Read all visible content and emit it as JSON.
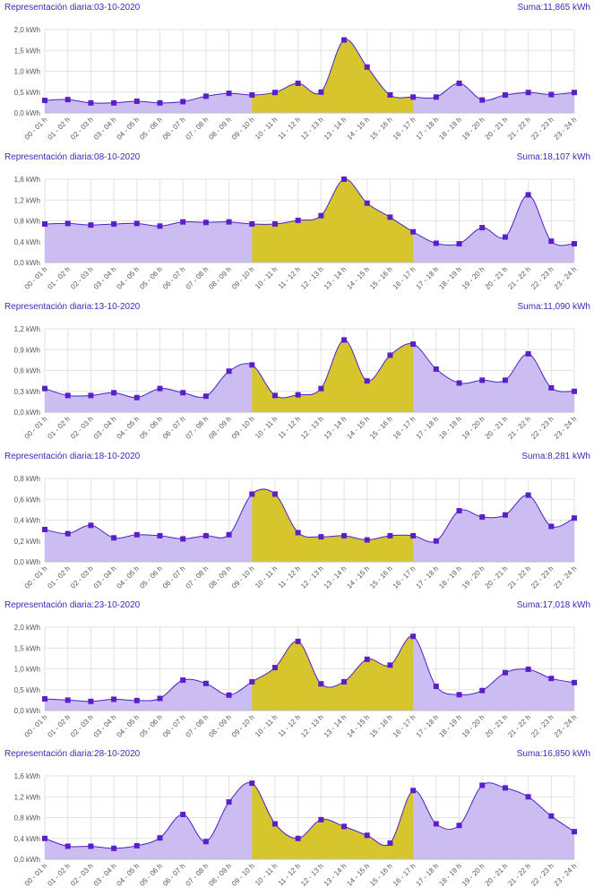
{
  "colors": {
    "title": "#3b2bb8",
    "line": "#4b22c8",
    "marker": "#5b1fc9",
    "fill": "#cbbcf2",
    "highlight": "#d7c52e",
    "grid": "#e2e2e2"
  },
  "chart_data": [
    {
      "type": "area",
      "title": "Representación diaria:03-10-2020",
      "total": "Suma:11,865 kWh",
      "categories": [
        "00 - 01 h",
        "01 - 02 h",
        "02 - 03 h",
        "03 - 04 h",
        "04 - 05 h",
        "05 - 06 h",
        "06 - 07 h",
        "07 - 08 h",
        "08 - 09 h",
        "09 - 10 h",
        "10 - 11 h",
        "11 - 12 h",
        "12 - 13 h",
        "13 - 14 h",
        "14 - 15 h",
        "15 - 16 h",
        "16 - 17 h",
        "17 - 18 h",
        "18 - 19 h",
        "19 - 20 h",
        "20 - 21 h",
        "21 - 22 h",
        "22 - 23 h",
        "23 - 24 h"
      ],
      "values": [
        0.3,
        0.32,
        0.24,
        0.24,
        0.28,
        0.24,
        0.27,
        0.4,
        0.47,
        0.43,
        0.49,
        0.71,
        0.5,
        1.75,
        1.1,
        0.43,
        0.38,
        0.38,
        0.71,
        0.31,
        0.43,
        0.49,
        0.44,
        0.49
      ],
      "yticks": [
        "0,0 kWh",
        "0,5 kWh",
        "1,0 kWh",
        "1,5 kWh",
        "2,0 kWh"
      ],
      "ylim": [
        0,
        2.0
      ],
      "highlight_range": [
        9,
        16
      ],
      "grid": true
    },
    {
      "type": "area",
      "title": "Representación diaria:08-10-2020",
      "total": "Suma:18,107 kWh",
      "categories": [
        "00 - 01 h",
        "01 - 02 h",
        "02 - 03 h",
        "03 - 04 h",
        "04 - 05 h",
        "05 - 06 h",
        "06 - 07 h",
        "07 - 08 h",
        "08 - 09 h",
        "09 - 10 h",
        "10 - 11 h",
        "11 - 12 h",
        "12 - 13 h",
        "13 - 14 h",
        "14 - 15 h",
        "15 - 16 h",
        "16 - 17 h",
        "17 - 18 h",
        "18 - 19 h",
        "19 - 20 h",
        "20 - 21 h",
        "21 - 22 h",
        "22 - 23 h",
        "23 - 24 h"
      ],
      "values": [
        0.74,
        0.75,
        0.72,
        0.74,
        0.75,
        0.7,
        0.78,
        0.77,
        0.78,
        0.74,
        0.74,
        0.81,
        0.9,
        1.6,
        1.14,
        0.87,
        0.59,
        0.37,
        0.36,
        0.67,
        0.49,
        1.3,
        0.41,
        0.36
      ],
      "yticks": [
        "0,0 kWh",
        "0,4 kWh",
        "0,8 kWh",
        "1,2 kWh",
        "1,6 kWh"
      ],
      "ylim": [
        0,
        1.6
      ],
      "highlight_range": [
        9,
        16
      ],
      "grid": true
    },
    {
      "type": "area",
      "title": "Representación diaria:13-10-2020",
      "total": "Suma:11,090 kWh",
      "categories": [
        "00 - 01 h",
        "01 - 02 h",
        "02 - 03 h",
        "03 - 04 h",
        "04 - 05 h",
        "05 - 06 h",
        "06 - 07 h",
        "07 - 08 h",
        "08 - 09 h",
        "09 - 10 h",
        "10 - 11 h",
        "11 - 12 h",
        "12 - 13 h",
        "13 - 14 h",
        "14 - 15 h",
        "15 - 16 h",
        "16 - 17 h",
        "17 - 18 h",
        "18 - 19 h",
        "19 - 20 h",
        "20 - 21 h",
        "21 - 22 h",
        "22 - 23 h",
        "23 - 24 h"
      ],
      "values": [
        0.34,
        0.24,
        0.24,
        0.28,
        0.21,
        0.34,
        0.28,
        0.23,
        0.59,
        0.68,
        0.24,
        0.25,
        0.34,
        1.04,
        0.45,
        0.82,
        0.98,
        0.62,
        0.42,
        0.46,
        0.46,
        0.84,
        0.35,
        0.3
      ],
      "yticks": [
        "0,0 kWh",
        "0,3 kWh",
        "0,6 kWh",
        "0,9 kWh",
        "1,2 kWh"
      ],
      "ylim": [
        0,
        1.2
      ],
      "highlight_range": [
        9,
        16
      ],
      "grid": true
    },
    {
      "type": "area",
      "title": "Representación diaria:18-10-2020",
      "total": "Suma:8,281 kWh",
      "categories": [
        "00 - 01 h",
        "01 - 02 h",
        "02 - 03 h",
        "03 - 04 h",
        "04 - 05 h",
        "05 - 06 h",
        "06 - 07 h",
        "07 - 08 h",
        "08 - 09 h",
        "09 - 10 h",
        "10 - 11 h",
        "11 - 12 h",
        "12 - 13 h",
        "13 - 14 h",
        "14 - 15 h",
        "15 - 16 h",
        "16 - 17 h",
        "17 - 18 h",
        "18 - 19 h",
        "19 - 20 h",
        "20 - 21 h",
        "21 - 22 h",
        "22 - 23 h",
        "23 - 24 h"
      ],
      "values": [
        0.31,
        0.27,
        0.35,
        0.23,
        0.26,
        0.25,
        0.22,
        0.25,
        0.26,
        0.65,
        0.65,
        0.28,
        0.24,
        0.25,
        0.21,
        0.25,
        0.25,
        0.2,
        0.49,
        0.43,
        0.45,
        0.64,
        0.34,
        0.42
      ],
      "yticks": [
        "0,0 kWh",
        "0,2 kWh",
        "0,4 kWh",
        "0,6 kWh",
        "0,8 kWh"
      ],
      "ylim": [
        0,
        0.8
      ],
      "highlight_range": [
        9,
        16
      ],
      "grid": true
    },
    {
      "type": "area",
      "title": "Representación diaria:23-10-2020",
      "total": "Suma:17,018 kWh",
      "categories": [
        "00 - 01 h",
        "01 - 02 h",
        "02 - 03 h",
        "03 - 04 h",
        "04 - 05 h",
        "05 - 06 h",
        "06 - 07 h",
        "07 - 08 h",
        "08 - 09 h",
        "09 - 10 h",
        "10 - 11 h",
        "11 - 12 h",
        "12 - 13 h",
        "13 - 14 h",
        "14 - 15 h",
        "15 - 16 h",
        "16 - 17 h",
        "17 - 18 h",
        "18 - 19 h",
        "19 - 20 h",
        "20 - 21 h",
        "21 - 22 h",
        "22 - 23 h",
        "23 - 24 h"
      ],
      "values": [
        0.28,
        0.25,
        0.22,
        0.27,
        0.24,
        0.29,
        0.73,
        0.65,
        0.37,
        0.69,
        1.03,
        1.66,
        0.64,
        0.69,
        1.23,
        1.09,
        1.78,
        0.58,
        0.38,
        0.48,
        0.91,
        0.99,
        0.77,
        0.67
      ],
      "yticks": [
        "0,0 kWh",
        "0,5 kWh",
        "1,0 kWh",
        "1,5 kWh",
        "2,0 kWh"
      ],
      "ylim": [
        0,
        2.0
      ],
      "highlight_range": [
        9,
        16
      ],
      "grid": true
    },
    {
      "type": "area",
      "title": "Representación diaria:28-10-2020",
      "total": "Suma:16,850 kWh",
      "categories": [
        "00 - 01 h",
        "01 - 02 h",
        "02 - 03 h",
        "03 - 04 h",
        "04 - 05 h",
        "05 - 06 h",
        "06 - 07 h",
        "07 - 08 h",
        "08 - 09 h",
        "09 - 10 h",
        "10 - 11 h",
        "11 - 12 h",
        "12 - 13 h",
        "13 - 14 h",
        "14 - 15 h",
        "15 - 16 h",
        "16 - 17 h",
        "17 - 18 h",
        "18 - 19 h",
        "19 - 20 h",
        "20 - 21 h",
        "21 - 22 h",
        "22 - 23 h",
        "23 - 24 h"
      ],
      "values": [
        0.4,
        0.25,
        0.25,
        0.21,
        0.26,
        0.41,
        0.86,
        0.34,
        1.1,
        1.46,
        0.68,
        0.4,
        0.76,
        0.63,
        0.46,
        0.31,
        1.32,
        0.68,
        0.65,
        1.42,
        1.37,
        1.2,
        0.83,
        0.53
      ],
      "yticks": [
        "0,0 kWh",
        "0,4 kWh",
        "0,8 kWh",
        "1,2 kWh",
        "1,6 kWh"
      ],
      "ylim": [
        0,
        1.6
      ],
      "highlight_range": [
        9,
        16
      ],
      "grid": true
    }
  ]
}
